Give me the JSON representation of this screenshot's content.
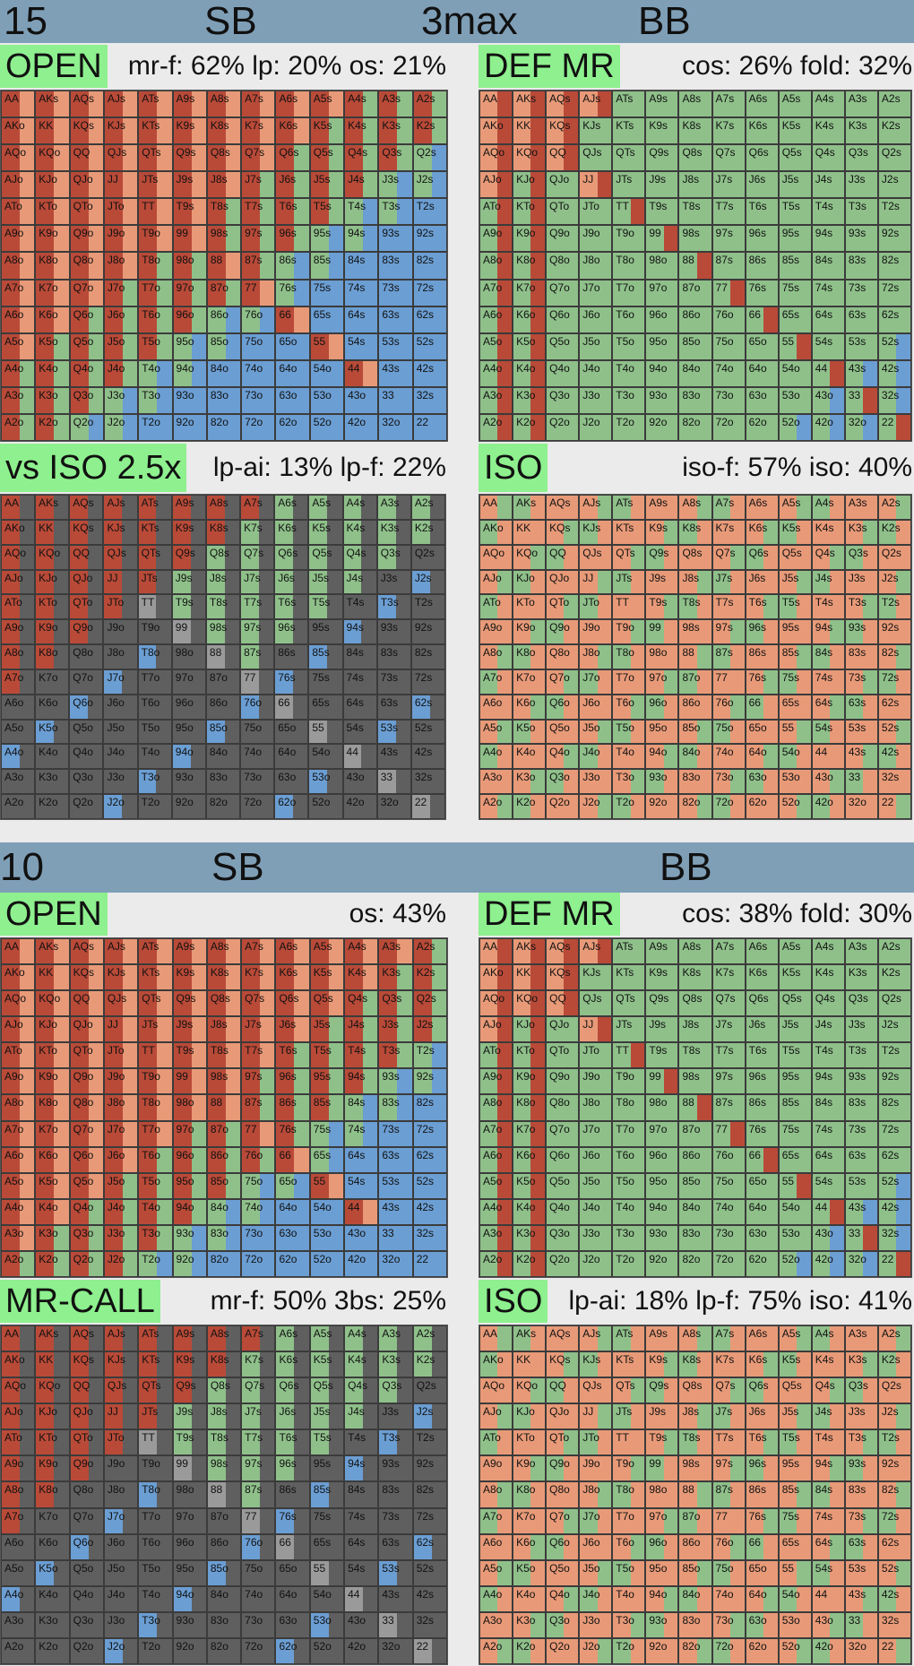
{
  "colors": {
    "raise": "#b94a38",
    "shove": "#e89a78",
    "call": "#8fc08a",
    "fold": "#6b9ed3",
    "gray": "#5f5f5f",
    "lightgray": "#9a9a9a",
    "tag": "#8ef08e",
    "band": "#7f9fb7"
  },
  "hands": [
    [
      "AA",
      "AKs",
      "AQs",
      "AJs",
      "ATs",
      "A9s",
      "A8s",
      "A7s",
      "A6s",
      "A5s",
      "A4s",
      "A3s",
      "A2s"
    ],
    [
      "AKo",
      "KK",
      "KQs",
      "KJs",
      "KTs",
      "K9s",
      "K8s",
      "K7s",
      "K6s",
      "K5s",
      "K4s",
      "K3s",
      "K2s"
    ],
    [
      "AQo",
      "KQo",
      "QQ",
      "QJs",
      "QTs",
      "Q9s",
      "Q8s",
      "Q7s",
      "Q6s",
      "Q5s",
      "Q4s",
      "Q3s",
      "Q2s"
    ],
    [
      "AJo",
      "KJo",
      "QJo",
      "JJ",
      "JTs",
      "J9s",
      "J8s",
      "J7s",
      "J6s",
      "J5s",
      "J4s",
      "J3s",
      "J2s"
    ],
    [
      "ATo",
      "KTo",
      "QTo",
      "JTo",
      "TT",
      "T9s",
      "T8s",
      "T7s",
      "T6s",
      "T5s",
      "T4s",
      "T3s",
      "T2s"
    ],
    [
      "A9o",
      "K9o",
      "Q9o",
      "J9o",
      "T9o",
      "99",
      "98s",
      "97s",
      "96s",
      "95s",
      "94s",
      "93s",
      "92s"
    ],
    [
      "A8o",
      "K8o",
      "Q8o",
      "J8o",
      "T8o",
      "98o",
      "88",
      "87s",
      "86s",
      "85s",
      "84s",
      "83s",
      "82s"
    ],
    [
      "A7o",
      "K7o",
      "Q7o",
      "J7o",
      "T7o",
      "97o",
      "87o",
      "77",
      "76s",
      "75s",
      "74s",
      "73s",
      "72s"
    ],
    [
      "A6o",
      "K6o",
      "Q6o",
      "J6o",
      "T6o",
      "96o",
      "86o",
      "76o",
      "66",
      "65s",
      "64s",
      "63s",
      "62s"
    ],
    [
      "A5o",
      "K5o",
      "Q5o",
      "J5o",
      "T5o",
      "95o",
      "85o",
      "75o",
      "65o",
      "55",
      "54s",
      "53s",
      "52s"
    ],
    [
      "A4o",
      "K4o",
      "Q4o",
      "J4o",
      "T4o",
      "94o",
      "84o",
      "74o",
      "64o",
      "54o",
      "44",
      "43s",
      "42s"
    ],
    [
      "A3o",
      "K3o",
      "Q3o",
      "J3o",
      "T3o",
      "93o",
      "83o",
      "73o",
      "63o",
      "53o",
      "43o",
      "33",
      "32s"
    ],
    [
      "A2o",
      "K2o",
      "Q2o",
      "J2o",
      "T2o",
      "92o",
      "82o",
      "72o",
      "62o",
      "52o",
      "42o",
      "32o",
      "22"
    ]
  ],
  "section15": {
    "number": "15",
    "left": "SB",
    "center": "3max",
    "right": "BB",
    "open": {
      "tag": "OPEN",
      "stats": "mr-f: 62%  lp: 20%  os: 21%"
    },
    "defmr": {
      "tag": "DEF MR",
      "stats": "cos: 26%  fold: 32%"
    },
    "vsiso": {
      "tag": "vs ISO 2.5x",
      "stats": "lp-ai: 13%  lp-f: 22%"
    },
    "iso": {
      "tag": "ISO",
      "stats": "iso-f: 57%  iso: 40%"
    }
  },
  "section10": {
    "number": "10",
    "left": "SB",
    "right": "BB",
    "open": {
      "tag": "OPEN",
      "stats": "os: 43%"
    },
    "defmr": {
      "tag": "DEF MR",
      "stats": "cos: 38%  fold: 30%"
    },
    "mrcall": {
      "tag": "MR-CALL",
      "stats": "mr-f: 50%  3bs: 25%"
    },
    "iso": {
      "tag": "ISO",
      "stats": "lp-ai: 18%  lp-f: 75%  iso: 41%"
    }
  }
}
